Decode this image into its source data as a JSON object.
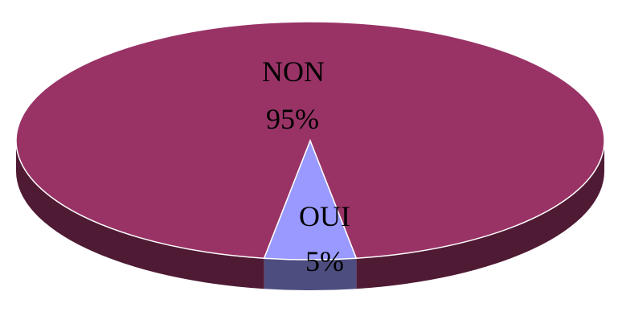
{
  "chart_data": {
    "type": "pie",
    "style": "3d",
    "title": "",
    "legend": "none",
    "slices": [
      {
        "category": "NON",
        "value": 95,
        "value_label": "95%",
        "color": "#993366",
        "side_color": "#4f1a34"
      },
      {
        "category": "OUI",
        "value": 5,
        "value_label": "5%",
        "color": "#9999ff",
        "side_color": "#4d4d80"
      }
    ]
  }
}
